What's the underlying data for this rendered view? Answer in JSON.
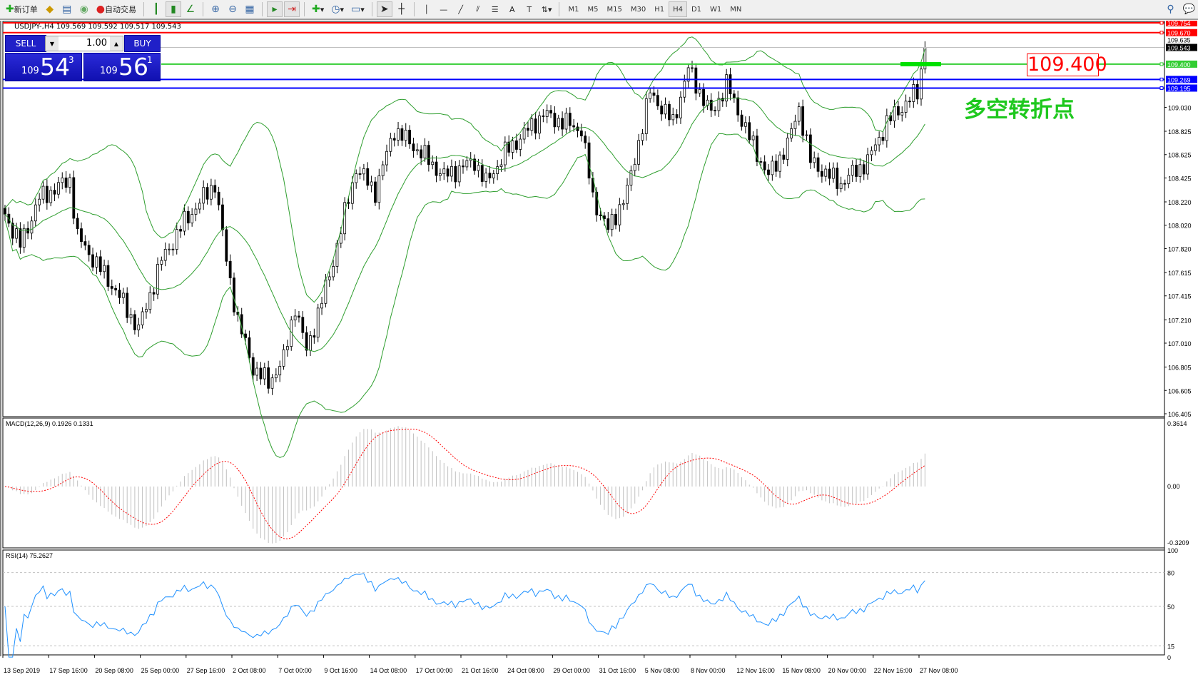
{
  "toolbar": {
    "new_order": "新订单",
    "auto_trading": "自动交易",
    "timeframes": [
      "M1",
      "M5",
      "M15",
      "M30",
      "H1",
      "H4",
      "D1",
      "W1",
      "MN"
    ],
    "active_timeframe": "H4"
  },
  "chart": {
    "title": "USDJPY-,H4  109.569 109.592 109.517 109.543",
    "symbol": "USDJPY-",
    "timeframe": "H4",
    "ohlc": {
      "open": 109.569,
      "high": 109.592,
      "low": 109.517,
      "close": 109.543
    }
  },
  "one_click": {
    "sell_label": "SELL",
    "buy_label": "BUY",
    "lots": "1.00",
    "sell_prefix": "109",
    "sell_big": "54",
    "sell_sup": "3",
    "buy_prefix": "109",
    "buy_big": "56",
    "buy_sup": "1"
  },
  "price_axis": [
    "109.030",
    "108.825",
    "108.625",
    "108.425",
    "108.220",
    "108.020",
    "107.820",
    "107.615",
    "107.415",
    "107.210",
    "107.010",
    "106.805",
    "106.605",
    "106.405"
  ],
  "price_axis_hidden": "109.635",
  "lines": [
    {
      "price": "109.754",
      "color": "#ff0000"
    },
    {
      "price": "109.670",
      "color": "#ff0000"
    },
    {
      "price": "109.400",
      "color": "#32cd32"
    },
    {
      "price": "109.269",
      "color": "#0000ff"
    },
    {
      "price": "109.195",
      "color": "#0000ff"
    }
  ],
  "bid_label": "109.543",
  "annotation": {
    "price_text": "109.400",
    "label": "多空转折点"
  },
  "macd": {
    "title": "MACD(12,26,9) 0.1926 0.1331",
    "max": "0.3614",
    "zero": "0.00",
    "min": "-0.3209"
  },
  "rsi": {
    "title": "RSI(14) 75.2627",
    "levels": [
      "100",
      "80",
      "50",
      "15",
      "0"
    ]
  },
  "time_axis": [
    "13 Sep 2019",
    "17 Sep 16:00",
    "20 Sep 08:00",
    "25 Sep 00:00",
    "27 Sep 16:00",
    "2 Oct 08:00",
    "7 Oct 00:00",
    "9 Oct 16:00",
    "14 Oct 08:00",
    "17 Oct 00:00",
    "21 Oct 16:00",
    "24 Oct 08:00",
    "29 Oct 00:00",
    "31 Oct 16:00",
    "5 Nov 08:00",
    "8 Nov 00:00",
    "12 Nov 16:00",
    "15 Nov 08:00",
    "20 Nov 00:00",
    "22 Nov 16:00",
    "27 Nov 08:00"
  ],
  "chart_data": {
    "type": "candlestick",
    "price_path": [
      [
        0,
        108.115
      ],
      [
        4,
        107.85
      ],
      [
        9,
        108.25
      ],
      [
        17,
        108.41
      ],
      [
        19,
        107.92
      ],
      [
        29,
        107.46
      ],
      [
        35,
        107.13
      ],
      [
        41,
        107.72
      ],
      [
        47,
        108.05
      ],
      [
        55,
        108.38
      ],
      [
        58,
        107.72
      ],
      [
        61,
        107.2
      ],
      [
        65,
        106.8
      ],
      [
        69,
        106.67
      ],
      [
        73,
        106.87
      ],
      [
        76,
        107.33
      ],
      [
        79,
        106.94
      ],
      [
        85,
        107.59
      ],
      [
        92,
        108.51
      ],
      [
        97,
        108.31
      ],
      [
        102,
        108.84
      ],
      [
        109,
        108.64
      ],
      [
        115,
        108.44
      ],
      [
        123,
        108.57
      ],
      [
        126,
        108.38
      ],
      [
        131,
        108.64
      ],
      [
        141,
        108.97
      ],
      [
        151,
        108.84
      ],
      [
        154,
        108.25
      ],
      [
        158,
        107.98
      ],
      [
        163,
        108.31
      ],
      [
        169,
        109.16
      ],
      [
        175,
        108.9
      ],
      [
        179,
        109.36
      ],
      [
        185,
        108.97
      ],
      [
        189,
        109.23
      ],
      [
        195,
        108.77
      ],
      [
        200,
        108.44
      ],
      [
        205,
        108.71
      ],
      [
        208,
        109.03
      ],
      [
        211,
        108.57
      ],
      [
        216,
        108.44
      ],
      [
        219,
        108.38
      ],
      [
        226,
        108.57
      ],
      [
        231,
        108.9
      ],
      [
        237,
        109.1
      ],
      [
        239,
        109.16
      ],
      [
        241,
        109.543
      ]
    ],
    "price_range": [
      106.405,
      109.754
    ],
    "indicators": [
      "Bollinger Bands",
      "MACD(12,26,9)",
      "RSI(14)"
    ]
  }
}
